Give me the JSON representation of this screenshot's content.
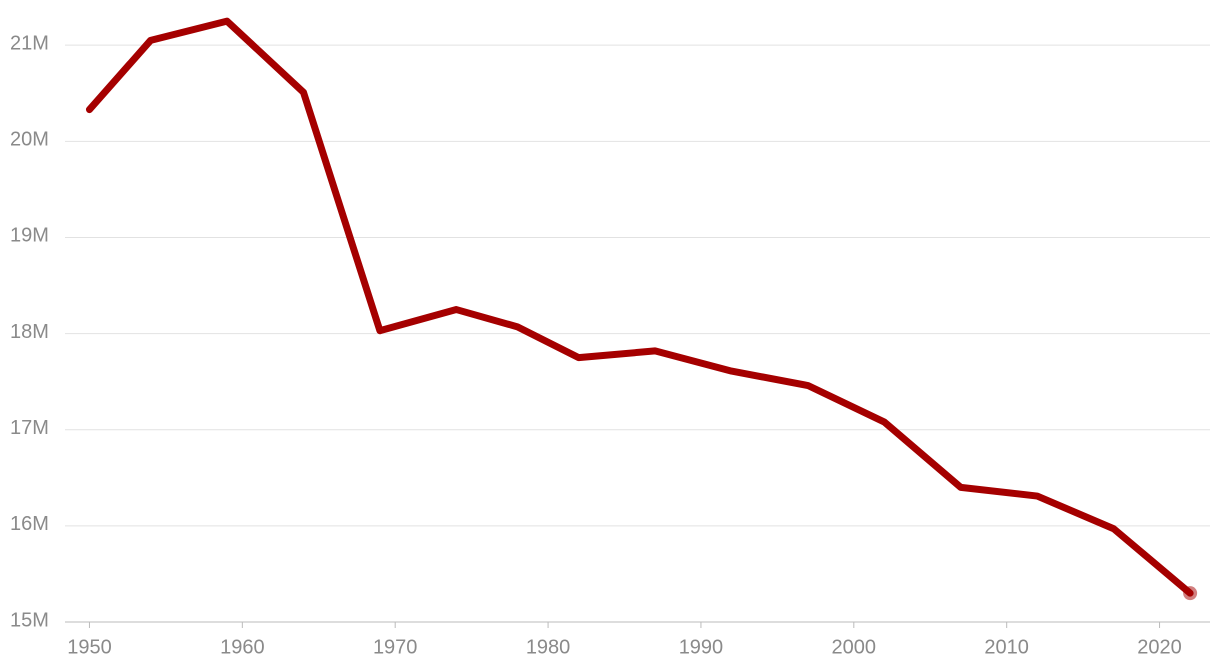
{
  "chart_data": {
    "type": "line",
    "x": [
      1950,
      1954,
      1959,
      1964,
      1969,
      1974,
      1978,
      1982,
      1987,
      1992,
      1997,
      2002,
      2007,
      2012,
      2017,
      2022
    ],
    "series": [
      {
        "color": "#a50000",
        "values": [
          20.33,
          21.05,
          21.25,
          20.51,
          18.03,
          18.25,
          18.07,
          17.75,
          17.82,
          17.61,
          17.46,
          17.08,
          16.4,
          16.31,
          15.97,
          15.3
        ]
      }
    ],
    "xlim": [
      1948.4,
      2023.3
    ],
    "xticks": [
      1950,
      1960,
      1970,
      1980,
      1990,
      2000,
      2010,
      2020
    ],
    "ylim": [
      15,
      21.47
    ],
    "yticks": [
      {
        "value": 15,
        "label": "15M"
      },
      {
        "value": 16,
        "label": "16M"
      },
      {
        "value": 17,
        "label": "17M"
      },
      {
        "value": 18,
        "label": "18M"
      },
      {
        "value": 19,
        "label": "19M"
      },
      {
        "value": 20,
        "label": "20M"
      },
      {
        "value": 21,
        "label": "21M"
      }
    ],
    "grid": true
  }
}
